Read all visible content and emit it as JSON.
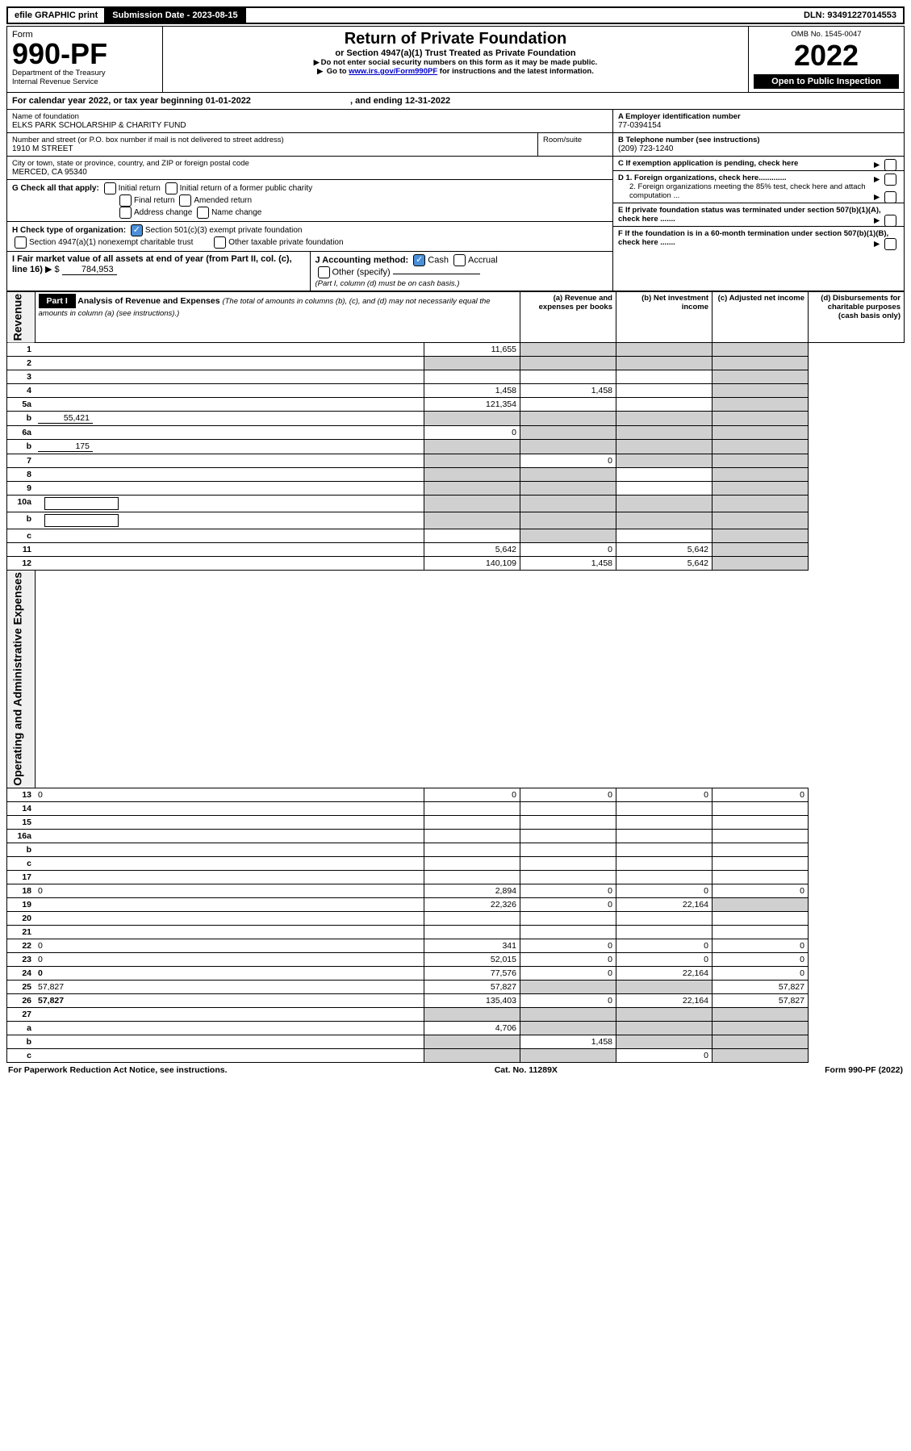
{
  "top": {
    "efile": "efile GRAPHIC print",
    "submission_label": "Submission Date - 2023-08-15",
    "dln": "DLN: 93491227014553"
  },
  "header": {
    "form_word": "Form",
    "form_number": "990-PF",
    "dept": "Department of the Treasury",
    "irs": "Internal Revenue Service",
    "title": "Return of Private Foundation",
    "subtitle": "or Section 4947(a)(1) Trust Treated as Private Foundation",
    "note1": "Do not enter social security numbers on this form as it may be made public.",
    "note2_pre": "Go to ",
    "note2_link": "www.irs.gov/Form990PF",
    "note2_post": " for instructions and the latest information.",
    "omb": "OMB No. 1545-0047",
    "year": "2022",
    "open": "Open to Public Inspection"
  },
  "cal_year": {
    "text_pre": "For calendar year 2022, or tax year beginning ",
    "begin": "01-01-2022",
    "mid": " , and ending ",
    "end": "12-31-2022"
  },
  "entity": {
    "name_label": "Name of foundation",
    "name": "ELKS PARK SCHOLARSHIP & CHARITY FUND",
    "addr_label": "Number and street (or P.O. box number if mail is not delivered to street address)",
    "addr": "1910 M STREET",
    "room_label": "Room/suite",
    "city_label": "City or town, state or province, country, and ZIP or foreign postal code",
    "city": "MERCED, CA  95340",
    "ein_label": "A Employer identification number",
    "ein": "77-0394154",
    "phone_label": "B Telephone number (see instructions)",
    "phone": "(209) 723-1240",
    "c_label": "C If exemption application is pending, check here",
    "d1": "D 1. Foreign organizations, check here.............",
    "d2": "2. Foreign organizations meeting the 85% test, check here and attach computation ...",
    "e_label": "E  If private foundation status was terminated under section 507(b)(1)(A), check here .......",
    "f_label": "F  If the foundation is in a 60-month termination under section 507(b)(1)(B), check here .......",
    "g_label": "G Check all that apply:",
    "g_opts": [
      "Initial return",
      "Initial return of a former public charity",
      "Final return",
      "Amended return",
      "Address change",
      "Name change"
    ],
    "h_label": "H Check type of organization:",
    "h_opt1": "Section 501(c)(3) exempt private foundation",
    "h_opt2": "Section 4947(a)(1) nonexempt charitable trust",
    "h_opt3": "Other taxable private foundation",
    "i_label": "I Fair market value of all assets at end of year (from Part II, col. (c), line 16)",
    "i_val": "784,953",
    "j_label": "J Accounting method:",
    "j_cash": "Cash",
    "j_accrual": "Accrual",
    "j_other": "Other (specify)",
    "j_note": "(Part I, column (d) must be on cash basis.)"
  },
  "part1": {
    "label": "Part I",
    "title": "Analysis of Revenue and Expenses",
    "title_note": "(The total of amounts in columns (b), (c), and (d) may not necessarily equal the amounts in column (a) (see instructions).)",
    "col_a": "(a) Revenue and expenses per books",
    "col_b": "(b) Net investment income",
    "col_c": "(c) Adjusted net income",
    "col_d": "(d) Disbursements for charitable purposes (cash basis only)",
    "rev_label": "Revenue",
    "exp_label": "Operating and Administrative Expenses",
    "rows": [
      {
        "n": "1",
        "d": "",
        "a": "11,655",
        "b": "",
        "c": "",
        "bg": true,
        "cg": true,
        "dg": true
      },
      {
        "n": "2",
        "d": "",
        "a": "",
        "b": "",
        "c": "",
        "ag": true,
        "bg": true,
        "cg": true,
        "dg": true
      },
      {
        "n": "3",
        "d": "",
        "a": "",
        "b": "",
        "c": "",
        "dg": true
      },
      {
        "n": "4",
        "d": "",
        "a": "1,458",
        "b": "1,458",
        "c": "",
        "dg": true
      },
      {
        "n": "5a",
        "d": "",
        "a": "121,354",
        "b": "",
        "c": "",
        "dg": true
      },
      {
        "n": "b",
        "d": "",
        "inline": "55,421",
        "a": "",
        "b": "",
        "c": "",
        "ag": true,
        "bg": true,
        "cg": true,
        "dg": true
      },
      {
        "n": "6a",
        "d": "",
        "a": "0",
        "b": "",
        "c": "",
        "bg": true,
        "cg": true,
        "dg": true
      },
      {
        "n": "b",
        "d": "",
        "inline": "175",
        "a": "",
        "b": "",
        "c": "",
        "ag": true,
        "bg": true,
        "cg": true,
        "dg": true
      },
      {
        "n": "7",
        "d": "",
        "a": "",
        "b": "0",
        "c": "",
        "ag": true,
        "cg": true,
        "dg": true
      },
      {
        "n": "8",
        "d": "",
        "a": "",
        "b": "",
        "c": "",
        "ag": true,
        "bg": true,
        "dg": true
      },
      {
        "n": "9",
        "d": "",
        "a": "",
        "b": "",
        "c": "",
        "ag": true,
        "bg": true,
        "dg": true
      },
      {
        "n": "10a",
        "d": "",
        "box": true,
        "a": "",
        "b": "",
        "c": "",
        "ag": true,
        "bg": true,
        "cg": true,
        "dg": true
      },
      {
        "n": "b",
        "d": "",
        "box": true,
        "a": "",
        "b": "",
        "c": "",
        "ag": true,
        "bg": true,
        "cg": true,
        "dg": true
      },
      {
        "n": "c",
        "d": "",
        "a": "",
        "b": "",
        "c": "",
        "bg": true,
        "dg": true
      },
      {
        "n": "11",
        "d": "",
        "a": "5,642",
        "b": "0",
        "c": "5,642",
        "dg": true
      },
      {
        "n": "12",
        "d": "",
        "bold": true,
        "a": "140,109",
        "b": "1,458",
        "c": "5,642",
        "dg": true
      },
      {
        "n": "13",
        "d": "0",
        "a": "0",
        "b": "0",
        "c": "0"
      },
      {
        "n": "14",
        "d": "",
        "a": "",
        "b": "",
        "c": ""
      },
      {
        "n": "15",
        "d": "",
        "a": "",
        "b": "",
        "c": ""
      },
      {
        "n": "16a",
        "d": "",
        "a": "",
        "b": "",
        "c": ""
      },
      {
        "n": "b",
        "d": "",
        "a": "",
        "b": "",
        "c": ""
      },
      {
        "n": "c",
        "d": "",
        "a": "",
        "b": "",
        "c": ""
      },
      {
        "n": "17",
        "d": "",
        "a": "",
        "b": "",
        "c": ""
      },
      {
        "n": "18",
        "d": "0",
        "a": "2,894",
        "b": "0",
        "c": "0"
      },
      {
        "n": "19",
        "d": "",
        "a": "22,326",
        "b": "0",
        "c": "22,164",
        "dg": true
      },
      {
        "n": "20",
        "d": "",
        "a": "",
        "b": "",
        "c": ""
      },
      {
        "n": "21",
        "d": "",
        "a": "",
        "b": "",
        "c": ""
      },
      {
        "n": "22",
        "d": "0",
        "a": "341",
        "b": "0",
        "c": "0"
      },
      {
        "n": "23",
        "d": "0",
        "a": "52,015",
        "b": "0",
        "c": "0"
      },
      {
        "n": "24",
        "d": "0",
        "bold": true,
        "a": "77,576",
        "b": "0",
        "c": "22,164"
      },
      {
        "n": "25",
        "d": "57,827",
        "a": "57,827",
        "b": "",
        "c": "",
        "bg": true,
        "cg": true
      },
      {
        "n": "26",
        "d": "57,827",
        "bold": true,
        "a": "135,403",
        "b": "0",
        "c": "22,164"
      },
      {
        "n": "27",
        "d": "",
        "a": "",
        "b": "",
        "c": "",
        "ag": true,
        "bg": true,
        "cg": true,
        "dg": true
      },
      {
        "n": "a",
        "d": "",
        "bold": true,
        "a": "4,706",
        "b": "",
        "c": "",
        "bg": true,
        "cg": true,
        "dg": true
      },
      {
        "n": "b",
        "d": "",
        "bold": true,
        "a": "",
        "b": "1,458",
        "c": "",
        "ag": true,
        "cg": true,
        "dg": true
      },
      {
        "n": "c",
        "d": "",
        "bold": true,
        "a": "",
        "b": "",
        "c": "0",
        "ag": true,
        "bg": true,
        "dg": true
      }
    ]
  },
  "footer": {
    "left": "For Paperwork Reduction Act Notice, see instructions.",
    "mid": "Cat. No. 11289X",
    "right": "Form 990-PF (2022)"
  }
}
